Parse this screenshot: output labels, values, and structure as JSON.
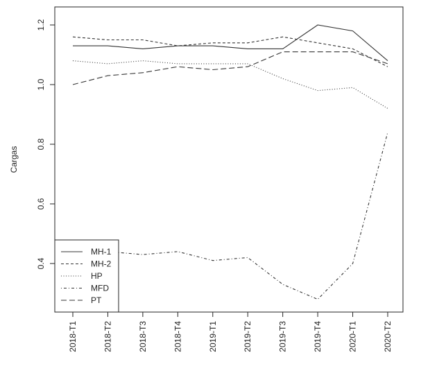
{
  "chart_data": {
    "type": "line",
    "ylabel": "Cargas",
    "xlabel": "",
    "title": "",
    "categories": [
      "2018-T1",
      "2018-T2",
      "2018-T3",
      "2018-T4",
      "2019-T1",
      "2019-T2",
      "2019-T3",
      "2019-T4",
      "2020-T1",
      "2020-T2"
    ],
    "ylim": [
      0.25,
      1.23
    ],
    "yticks": [
      "0.4",
      "0.6",
      "0.8",
      "1.0",
      "1.2"
    ],
    "grid": false,
    "legend_position": "bottom-left",
    "series": [
      {
        "name": "MH-1",
        "dash": "solid",
        "values": [
          1.13,
          1.13,
          1.12,
          1.13,
          1.13,
          1.12,
          1.12,
          1.2,
          1.18,
          1.08
        ]
      },
      {
        "name": "MH-2",
        "dash": "dashed",
        "values": [
          1.16,
          1.15,
          1.15,
          1.13,
          1.14,
          1.14,
          1.16,
          1.14,
          1.12,
          1.06
        ]
      },
      {
        "name": "HP",
        "dash": "dotted",
        "values": [
          1.08,
          1.07,
          1.08,
          1.07,
          1.07,
          1.07,
          1.02,
          0.98,
          0.99,
          0.92
        ]
      },
      {
        "name": "MFD",
        "dash": "dotdash",
        "values": [
          0.45,
          0.44,
          0.43,
          0.44,
          0.41,
          0.42,
          0.33,
          0.28,
          0.4,
          0.84
        ]
      },
      {
        "name": "PT",
        "dash": "longdash",
        "values": [
          1.0,
          1.03,
          1.04,
          1.06,
          1.05,
          1.06,
          1.11,
          1.11,
          1.11,
          1.07
        ]
      }
    ]
  }
}
